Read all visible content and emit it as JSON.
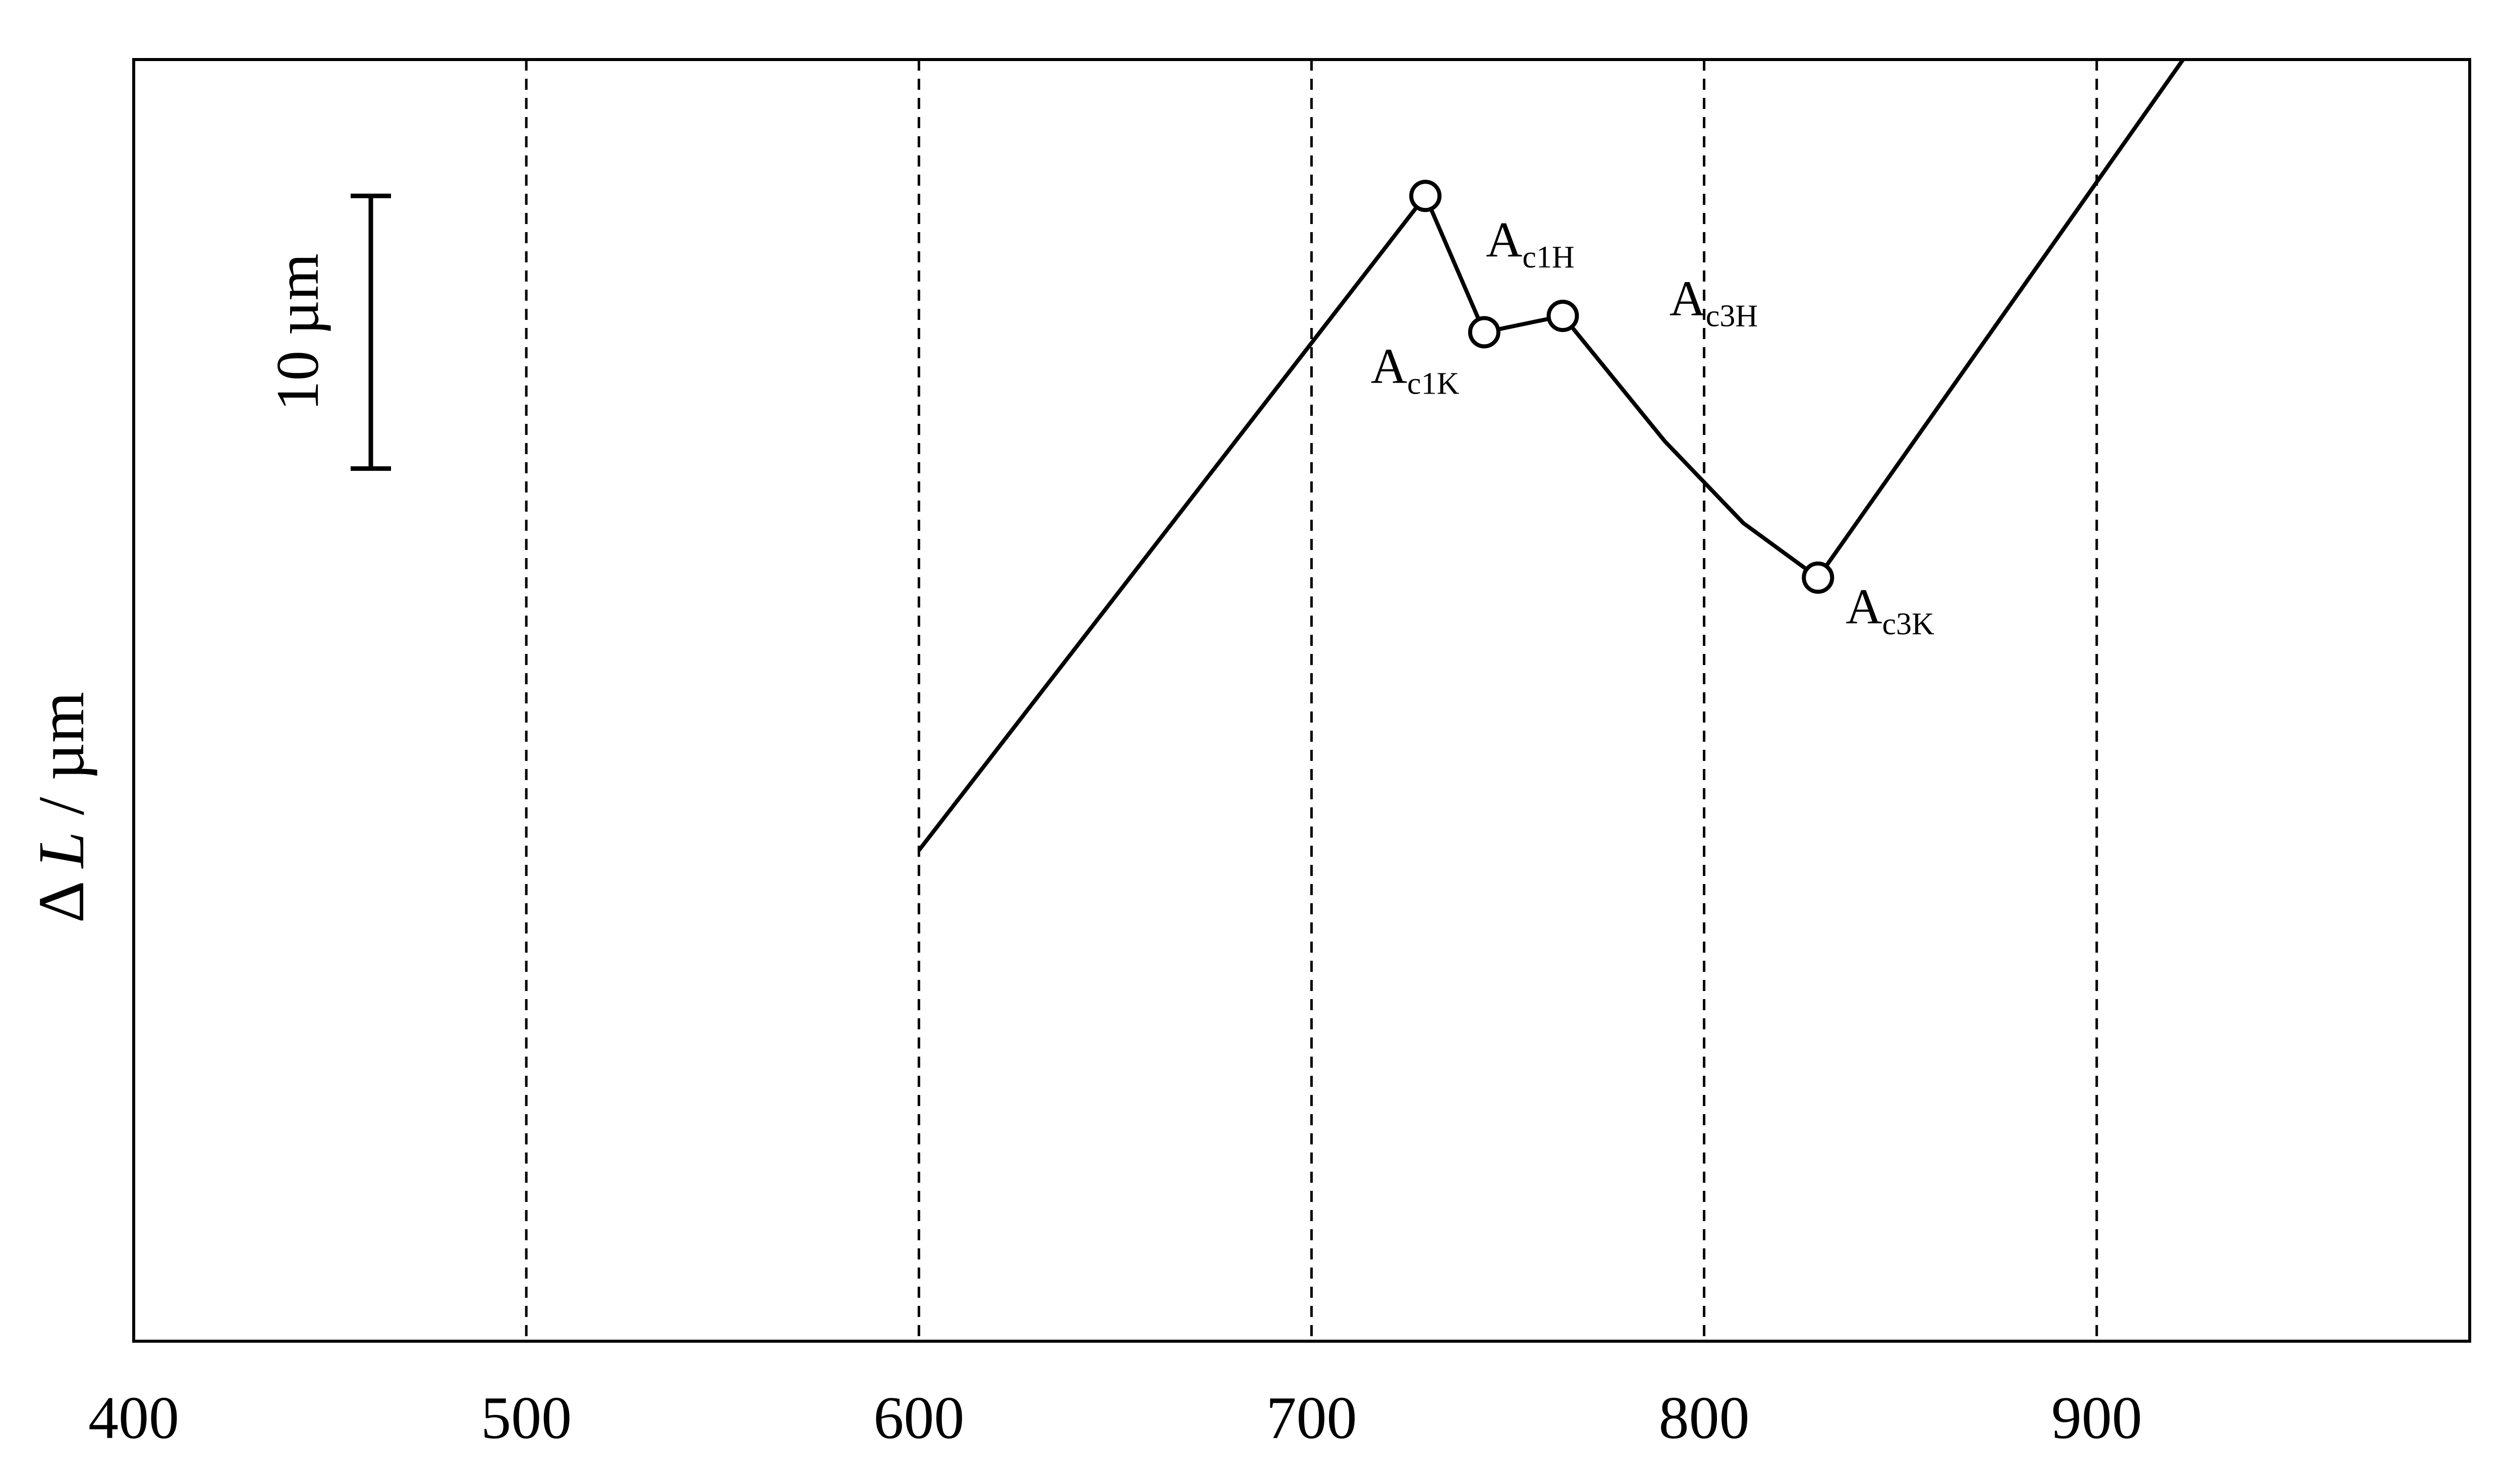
{
  "chart_data": {
    "type": "line",
    "title": "",
    "xlabel": "",
    "ylabel_symbol": "Δ",
    "ylabel_var": "L",
    "ylabel_unit": "/ µm",
    "xlim": [
      400,
      995
    ],
    "ylim": [
      0,
      47
    ],
    "xticks": [
      400,
      500,
      600,
      700,
      800,
      900
    ],
    "vgrid": [
      500,
      600,
      700,
      800,
      900
    ],
    "grid_style": "dashed vertical lines",
    "y_tick_labels": false,
    "scale_bar": {
      "length": 10,
      "label": "10 µm",
      "y_from": 32,
      "y_to": 42
    },
    "series": [
      {
        "points": [
          [
            600,
            18.0
          ],
          [
            729,
            42.0
          ],
          [
            744,
            37.0
          ],
          [
            764,
            37.6
          ],
          [
            790,
            33.0
          ],
          [
            810,
            30.0
          ],
          [
            829,
            28.0
          ],
          [
            922,
            47.0
          ]
        ]
      }
    ],
    "markers": [
      {
        "x": 729,
        "y": 42.0,
        "label": "A",
        "sub": "c1H"
      },
      {
        "x": 744,
        "y": 37.0,
        "label": "A",
        "sub": "c1K"
      },
      {
        "x": 764,
        "y": 37.6,
        "label": "",
        "sub": ""
      },
      {
        "x": 829,
        "y": 28.0,
        "label": "A",
        "sub": "c3K"
      }
    ],
    "annotations": [
      {
        "label": "A",
        "sub": "c3H",
        "x": 795,
        "y": 38.0
      }
    ]
  }
}
